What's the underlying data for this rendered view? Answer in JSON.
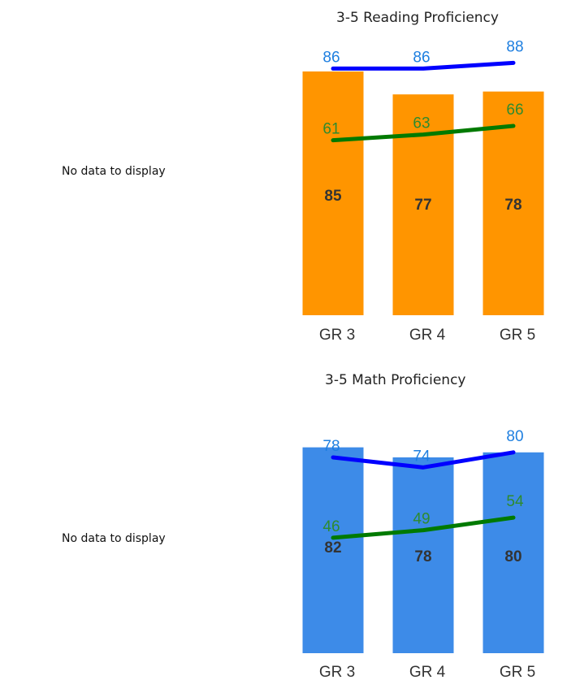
{
  "charts": [
    {
      "no_data_text": "No data to display",
      "title": "3-5 Reading Proficiency"
    },
    {
      "no_data_text": "No data to display",
      "title": "3-5 Math Proficiency"
    }
  ],
  "colors": {
    "reading_bar": "#FF9500",
    "math_bar": "#3D8BE8",
    "blue_line": "#0000FF",
    "blue_label": "#1E7FE0",
    "green_line": "#007A00",
    "green_label": "#2E8B2E",
    "bar_label": "#333333",
    "tick_label": "#333333"
  },
  "chart_data": [
    {
      "type": "bar",
      "title": "3-5 Reading Proficiency",
      "categories": [
        "GR 3",
        "GR 4",
        "GR 5"
      ],
      "series": [
        {
          "type": "bar",
          "values": [
            85,
            77,
            78
          ]
        },
        {
          "type": "line",
          "values": [
            86,
            86,
            88
          ]
        },
        {
          "type": "line",
          "values": [
            61,
            63,
            66
          ]
        }
      ],
      "ylim": [
        0,
        100
      ],
      "grid": false
    },
    {
      "type": "bar",
      "title": "3-5 Math Proficiency",
      "categories": [
        "GR 3",
        "GR 4",
        "GR 5"
      ],
      "series": [
        {
          "type": "bar",
          "values": [
            82,
            78,
            80
          ]
        },
        {
          "type": "line",
          "values": [
            78,
            74,
            80
          ]
        },
        {
          "type": "line",
          "values": [
            46,
            49,
            54
          ]
        }
      ],
      "ylim": [
        0,
        100
      ],
      "grid": false
    }
  ]
}
